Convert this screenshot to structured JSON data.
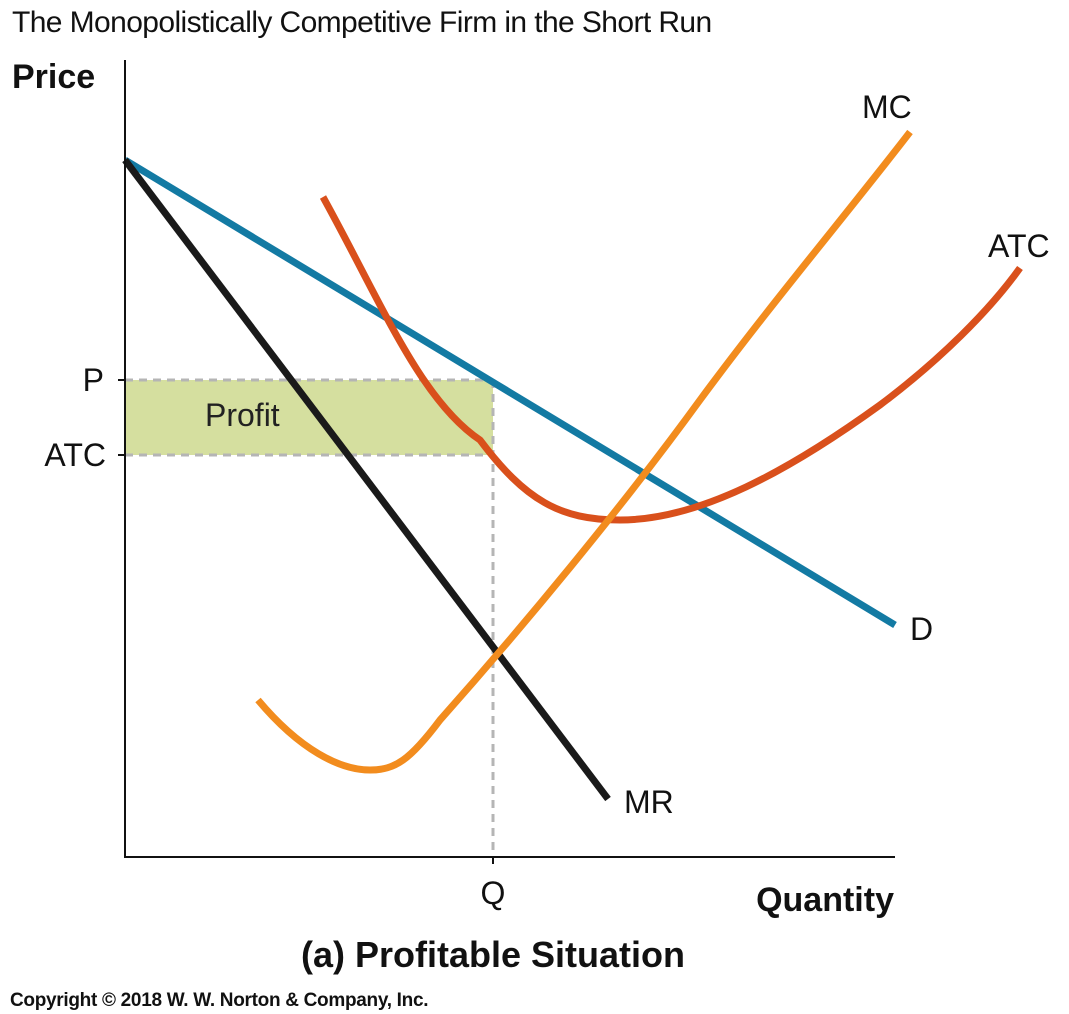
{
  "chart_data": {
    "type": "line",
    "title": "The Monopolistically Competitive Firm in the Short Run",
    "subtitle": "(a) Profitable Situation",
    "xlabel": "Quantity",
    "ylabel": "Price",
    "grid": false,
    "curves": [
      {
        "name": "MC",
        "color": "#f28c1e"
      },
      {
        "name": "ATC",
        "color": "#d9501c"
      },
      {
        "name": "D",
        "color": "#137aa3"
      },
      {
        "name": "MR",
        "color": "#1a1a1a"
      }
    ],
    "x_ticks": [
      {
        "label": "Q"
      }
    ],
    "y_ticks": [
      {
        "label": "P"
      },
      {
        "label": "ATC"
      }
    ],
    "shaded_region": {
      "label": "Profit",
      "color": "#d5df9f"
    },
    "copyright": "Copyright © 2018 W. W. Norton & Company, Inc."
  }
}
